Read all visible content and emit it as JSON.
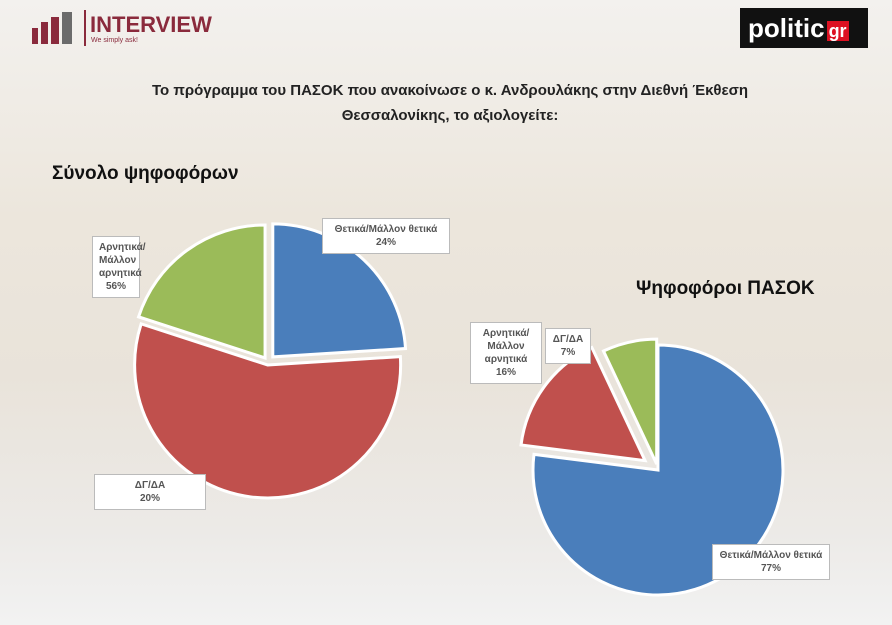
{
  "header": {
    "brand": "INTERVIEW",
    "tagline": "We simply ask!",
    "logo": "politic",
    "logo_suffix": "gr",
    "title": "Το πρόγραμμα του ΠΑΣΟΚ που ανακοίνωσε ο κ. Ανδρουλάκης στην Διεθνή Έκθεση Θεσσαλονίκης, το αξιολογείτε:"
  },
  "chart_data": [
    {
      "type": "pie",
      "title": "Σύνολο ψηφοφόρων",
      "categories": [
        "Θετικά/Μάλλον θετικά",
        "Αρνητικά/Μάλλον αρνητικά",
        "ΔΓ/ΔΑ"
      ],
      "values": [
        24,
        56,
        20
      ],
      "value_labels": [
        "24%",
        "56%",
        "20%"
      ],
      "colors": [
        "#4a7ebb",
        "#c0504d",
        "#9bbb59"
      ]
    },
    {
      "type": "pie",
      "title": "Ψηφοφόροι ΠΑΣΟΚ",
      "categories": [
        "Θετικά/Μάλλον θετικά",
        "Αρνητικά/Μάλλον αρνητικά",
        "ΔΓ/ΔΑ"
      ],
      "values": [
        77,
        16,
        7
      ],
      "value_labels": [
        "77%",
        "16%",
        "7%"
      ],
      "colors": [
        "#4a7ebb",
        "#c0504d",
        "#9bbb59"
      ]
    }
  ]
}
